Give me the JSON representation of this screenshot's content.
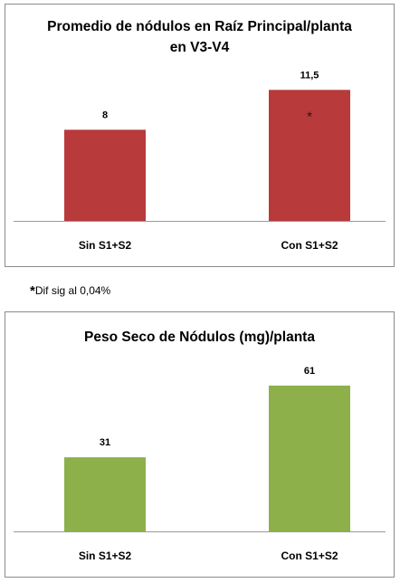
{
  "charts": [
    {
      "title_line1": "Promedio de nódulos en Raíz Principal/planta",
      "title_line2": "en V3-V4",
      "bar_color": "#b83a3a",
      "annotation": "*"
    },
    {
      "title_line1": "Peso Seco de Nódulos (mg)/planta",
      "bar_color": "#8db04a"
    }
  ],
  "footnote": {
    "star": "*",
    "text": "Dif sig al 0,04%"
  },
  "chart_data": [
    {
      "type": "bar",
      "title": "Promedio de nódulos en Raíz Principal/planta en V3-V4",
      "categories": [
        "Sin S1+S2",
        "Con S1+S2"
      ],
      "values": [
        8,
        11.5
      ],
      "value_labels": [
        "8",
        "11,5"
      ],
      "ylim": [
        0,
        12
      ],
      "grid": false,
      "legend": "none"
    },
    {
      "type": "bar",
      "title": "Peso Seco de Nódulos (mg)/planta",
      "categories": [
        "Sin S1+S2",
        "Con S1+S2"
      ],
      "values": [
        31,
        61
      ],
      "value_labels": [
        "31",
        "61"
      ],
      "ylim": [
        0,
        64
      ],
      "grid": false,
      "legend": "none"
    }
  ]
}
